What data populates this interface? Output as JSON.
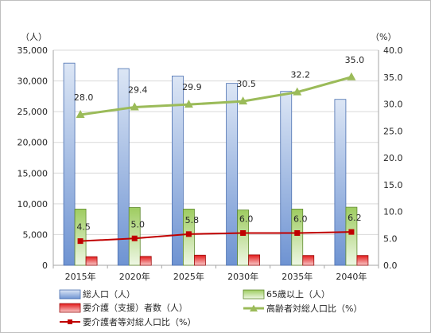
{
  "colors": {
    "population_top": "#dce6f5",
    "population_bottom": "#6e93d2",
    "population_stroke": "#4a6fb0",
    "elderly_top": "#9ecc60",
    "elderly_bottom": "#eef7e4",
    "elderly_stroke": "#5f8a2e",
    "care_top": "#e31a1a",
    "care_bottom": "#f8c8c8",
    "care_stroke": "#9e1010",
    "elderly_ratio_line": "#9bbb59",
    "care_ratio_line": "#c00000",
    "grid": "#d9d9d9",
    "axis": "#a6a6a6"
  },
  "chart_data": {
    "type": "bar",
    "categories": [
      "2015年",
      "2020年",
      "2025年",
      "2030年",
      "2035年",
      "2040年"
    ],
    "left_unit": "（人）",
    "right_unit": "（%）",
    "left_axis": {
      "min": 0,
      "max": 35000,
      "step": 5000,
      "tick_labels": [
        "0",
        "5,000",
        "10,000",
        "15,000",
        "20,000",
        "25,000",
        "30,000",
        "35,000"
      ]
    },
    "right_axis": {
      "min": 0,
      "max": 40,
      "step": 5,
      "tick_labels": [
        "0.0",
        "5.0",
        "10.0",
        "15.0",
        "20.0",
        "25.0",
        "30.0",
        "35.0",
        "40.0"
      ]
    },
    "grid": true,
    "legend_position": "bottom",
    "series": [
      {
        "name": "総人口（人）",
        "kind": "bar",
        "axis": "left",
        "values": [
          32900,
          32000,
          30800,
          29600,
          28300,
          27000
        ]
      },
      {
        "name": "65歳以上（人）",
        "kind": "bar",
        "axis": "left",
        "values": [
          9150,
          9400,
          9150,
          9000,
          9150,
          9450
        ]
      },
      {
        "name": "要介護（支援）者数（人）",
        "kind": "bar",
        "axis": "left",
        "values": [
          1400,
          1450,
          1650,
          1700,
          1600,
          1600
        ]
      },
      {
        "name": "高齢者対総人口比（%）",
        "kind": "line",
        "axis": "right",
        "marker": "triangle",
        "values": [
          28.0,
          29.4,
          29.9,
          30.5,
          32.2,
          35.0
        ],
        "labels": [
          "28.0",
          "29.4",
          "29.9",
          "30.5",
          "32.2",
          "35.0"
        ]
      },
      {
        "name": "要介護者等対総人口比（%）",
        "kind": "line",
        "axis": "right",
        "marker": "square",
        "values": [
          4.5,
          5.0,
          5.8,
          6.0,
          6.0,
          6.2
        ],
        "labels": [
          "4.5",
          "5.0",
          "5.8",
          "6.0",
          "6.0",
          "6.2"
        ]
      }
    ]
  }
}
